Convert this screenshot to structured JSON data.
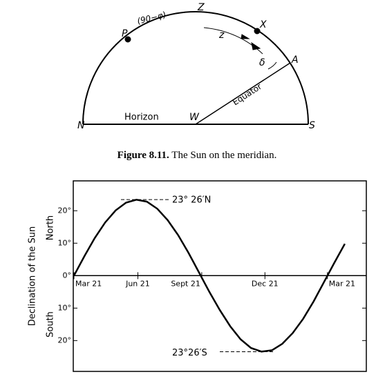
{
  "diagram": {
    "labels": {
      "zenith": "Z",
      "pole": "P",
      "arc": "(90−φ)",
      "sun": "X",
      "zenith_distance": "z",
      "equator_point": "A",
      "declination": "δ",
      "equator": "Equator",
      "horizon": "Horizon",
      "west": "W",
      "north": "N",
      "south": "S"
    },
    "caption": {
      "number": "Figure 8.11.",
      "text": "The Sun on the meridian."
    }
  },
  "chart_data": {
    "type": "line",
    "ylabel": "Declination of the Sun",
    "ylabel_north": "North",
    "ylabel_south": "South",
    "x": [
      0,
      15,
      30,
      45,
      60,
      75,
      90,
      105,
      120,
      135,
      150,
      165,
      180,
      195,
      210,
      225,
      240,
      255,
      270,
      285,
      300,
      315,
      330,
      345,
      360,
      375,
      390
    ],
    "values": [
      0,
      6.0,
      11.6,
      16.4,
      20.1,
      22.5,
      23.4,
      22.8,
      20.6,
      17.1,
      12.5,
      7.0,
      1.0,
      -5.0,
      -10.6,
      -15.6,
      -19.6,
      -22.3,
      -23.4,
      -23.0,
      -21.0,
      -17.7,
      -13.3,
      -8.0,
      -2.0,
      4.0,
      9.8
    ],
    "color": "#000000",
    "xlim": [
      -1,
      421
    ],
    "ylim": [
      -29.5,
      29.2
    ],
    "xticks": [
      {
        "value": 0,
        "label": "Mar 21"
      },
      {
        "value": 92,
        "label": "Jun 21"
      },
      {
        "value": 184,
        "label": "Sept 21"
      },
      {
        "value": 275,
        "label": "Dec 21"
      },
      {
        "value": 365,
        "label": "Mar 21"
      }
    ],
    "yticks": [
      {
        "value": 20,
        "label": "20°"
      },
      {
        "value": 10,
        "label": "10°"
      },
      {
        "value": 0,
        "label": "0°"
      },
      {
        "value": -10,
        "label": "10°"
      },
      {
        "value": -20,
        "label": "20°"
      }
    ],
    "annotations": [
      {
        "text": "23° 26′N",
        "value": 23.43
      },
      {
        "text": "23°26′S",
        "value": -23.43
      }
    ]
  }
}
